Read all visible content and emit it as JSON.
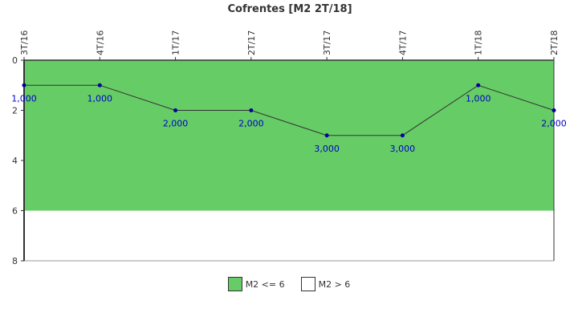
{
  "chart_data": {
    "type": "line",
    "title": "Cofrentes [M2 2T/18]",
    "xlabel": "",
    "ylabel": "",
    "categories": [
      "3T/16",
      "4T/16",
      "1T/17",
      "2T/17",
      "3T/17",
      "4T/17",
      "1T/18",
      "2T/18"
    ],
    "series": [
      {
        "values": [
          1,
          1,
          2,
          2,
          3,
          3,
          1,
          2
        ],
        "labels": [
          "1,000",
          "1,000",
          "2,000",
          "2,000",
          "3,000",
          "3,000",
          "1,000",
          "2,000"
        ],
        "color": "#333333",
        "marker_color": "#000099",
        "label_color": "#0000cc"
      }
    ],
    "ylim": [
      0,
      8
    ],
    "y_inverted": true,
    "yticks": [
      "0",
      "2",
      "4",
      "6",
      "8"
    ],
    "bands": [
      {
        "name": "M2 <= 6",
        "from": 0,
        "to": 6,
        "color": "#66cc66"
      },
      {
        "name": "M2 > 6",
        "from": 6,
        "to": 8,
        "color": "#ffffff"
      }
    ],
    "grid": false,
    "legend": "bottom-center"
  }
}
